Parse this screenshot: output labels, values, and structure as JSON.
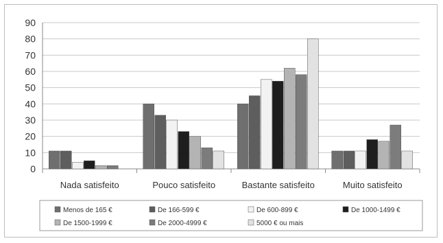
{
  "chart_data": {
    "type": "bar",
    "title": "",
    "xlabel": "",
    "ylabel": "",
    "ylim": [
      0,
      90
    ],
    "yticks": [
      0,
      10,
      20,
      30,
      40,
      50,
      60,
      70,
      80,
      90
    ],
    "grid": "horizontal",
    "legend_position": "bottom",
    "categories": [
      "Nada satisfeito",
      "Pouco satisfeito",
      "Bastante satisfeito",
      "Muito satisfeito"
    ],
    "series": [
      {
        "name": "Menos de 165 €",
        "color": "#6f6f6f",
        "values": [
          11,
          40,
          40,
          11
        ]
      },
      {
        "name": "De 166-599 €",
        "color": "#5e5e5e",
        "values": [
          11,
          33,
          45,
          11
        ]
      },
      {
        "name": "De 600-899 €",
        "color": "#f2f2f2",
        "values": [
          4,
          30,
          55,
          11
        ]
      },
      {
        "name": "De 1000-1499 €",
        "color": "#1e1e1e",
        "values": [
          5,
          23,
          54,
          18
        ]
      },
      {
        "name": "De 1500-1999 €",
        "color": "#b4b4b4",
        "values": [
          2,
          20,
          62,
          17
        ]
      },
      {
        "name": "De 2000-4999 €",
        "color": "#7c7c7c",
        "values": [
          2,
          13,
          58,
          27
        ]
      },
      {
        "name": "5000 € ou mais",
        "color": "#e2e2e2",
        "values": [
          0,
          11,
          80,
          11
        ]
      }
    ]
  }
}
